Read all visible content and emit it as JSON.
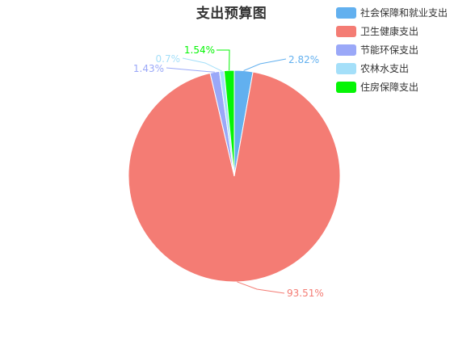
{
  "chart_data": {
    "type": "pie",
    "title": "支出预算图",
    "legend_position": "top-right",
    "slices": [
      {
        "name": "社会保障和就业支出",
        "value": 2.82,
        "label": "2.82%",
        "color": "#62b0ef"
      },
      {
        "name": "卫生健康支出",
        "value": 93.51,
        "label": "93.51%",
        "color": "#f47c74"
      },
      {
        "name": "节能环保支出",
        "value": 1.43,
        "label": "1.43%",
        "color": "#9aa8f8"
      },
      {
        "name": "农林水支出",
        "value": 0.7,
        "label": "0.7%",
        "color": "#a4dff9"
      },
      {
        "name": "住房保障支出",
        "value": 1.54,
        "label": "1.54%",
        "color": "#05f505"
      }
    ]
  }
}
